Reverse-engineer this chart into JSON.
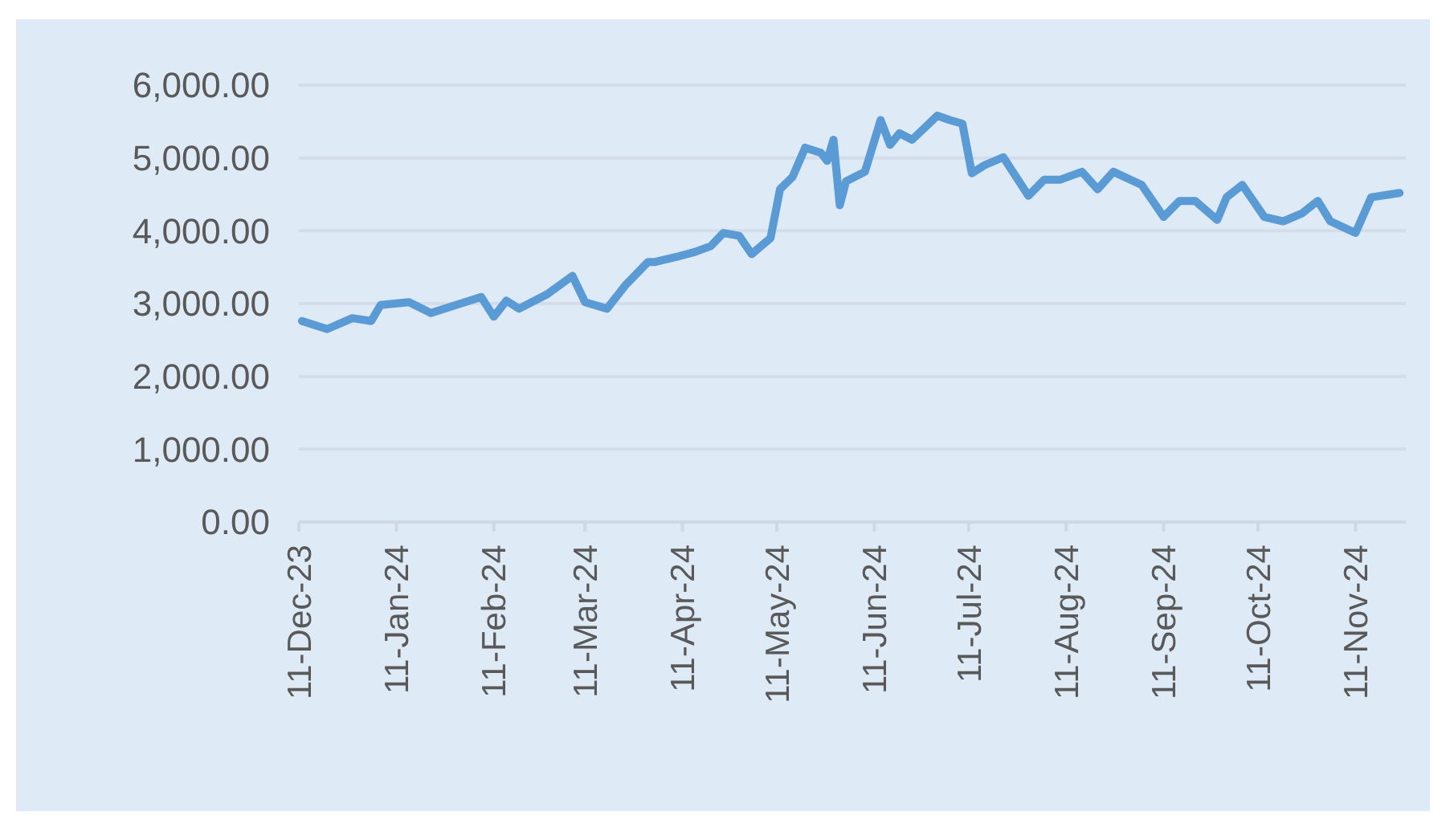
{
  "chart_data": {
    "type": "line",
    "grid": "y",
    "line_style": "solid",
    "marker": "none",
    "xlim": [
      "2023-12-11",
      "2024-11-27"
    ],
    "xticks": [
      {
        "value": "2023-12-11",
        "label": "11-Dec-23"
      },
      {
        "value": "2024-01-11",
        "label": "11-Jan-24"
      },
      {
        "value": "2024-02-11",
        "label": "11-Feb-24"
      },
      {
        "value": "2024-03-11",
        "label": "11-Mar-24"
      },
      {
        "value": "2024-04-11",
        "label": "11-Apr-24"
      },
      {
        "value": "2024-05-11",
        "label": "11-May-24"
      },
      {
        "value": "2024-06-11",
        "label": "11-Jun-24"
      },
      {
        "value": "2024-07-11",
        "label": "11-Jul-24"
      },
      {
        "value": "2024-08-11",
        "label": "11-Aug-24"
      },
      {
        "value": "2024-09-11",
        "label": "11-Sep-24"
      },
      {
        "value": "2024-10-11",
        "label": "11-Oct-24"
      },
      {
        "value": "2024-11-11",
        "label": "11-Nov-24"
      }
    ],
    "ylim": [
      0,
      6000
    ],
    "yticks": [
      {
        "value": 0,
        "label": "0.00"
      },
      {
        "value": 1000,
        "label": "1,000.00"
      },
      {
        "value": 2000,
        "label": "2,000.00"
      },
      {
        "value": 3000,
        "label": "3,000.00"
      },
      {
        "value": 4000,
        "label": "4,000.00"
      },
      {
        "value": 5000,
        "label": "5,000.00"
      },
      {
        "value": 6000,
        "label": "6,000.00"
      }
    ],
    "x": [
      "2023-12-12",
      "2023-12-20",
      "2023-12-28",
      "2024-01-03",
      "2024-01-06",
      "2024-01-15",
      "2024-01-22",
      "2024-01-30",
      "2024-02-07",
      "2024-02-11",
      "2024-02-15",
      "2024-02-19",
      "2024-02-28",
      "2024-03-07",
      "2024-03-11",
      "2024-03-18",
      "2024-03-24",
      "2024-03-31",
      "2024-04-02",
      "2024-04-09",
      "2024-04-15",
      "2024-04-20",
      "2024-04-24",
      "2024-04-29",
      "2024-05-03",
      "2024-05-09",
      "2024-05-12",
      "2024-05-16",
      "2024-05-20",
      "2024-05-25",
      "2024-05-27",
      "2024-05-29",
      "2024-05-31",
      "2024-06-02",
      "2024-06-08",
      "2024-06-13",
      "2024-06-16",
      "2024-06-19",
      "2024-06-23",
      "2024-07-01",
      "2024-07-05",
      "2024-07-09",
      "2024-07-12",
      "2024-07-16",
      "2024-07-22",
      "2024-07-27",
      "2024-07-30",
      "2024-08-04",
      "2024-08-09",
      "2024-08-16",
      "2024-08-21",
      "2024-08-26",
      "2024-09-04",
      "2024-09-11",
      "2024-09-16",
      "2024-09-21",
      "2024-09-28",
      "2024-10-01",
      "2024-10-06",
      "2024-10-13",
      "2024-10-19",
      "2024-10-25",
      "2024-10-30",
      "2024-11-03",
      "2024-11-11",
      "2024-11-16",
      "2024-11-25"
    ],
    "series": [
      {
        "color": "#5b9bd5",
        "values": [
          2760,
          2650,
          2800,
          2760,
          2980,
          3020,
          2870,
          2980,
          3090,
          2820,
          3040,
          2930,
          3130,
          3380,
          3020,
          2930,
          3260,
          3570,
          3570,
          3640,
          3710,
          3790,
          3970,
          3930,
          3680,
          3900,
          4570,
          4740,
          5140,
          5070,
          4960,
          5250,
          4350,
          4680,
          4810,
          5520,
          5180,
          5340,
          5250,
          5580,
          5520,
          5470,
          4790,
          4900,
          5010,
          4680,
          4480,
          4700,
          4700,
          4810,
          4570,
          4810,
          4630,
          4190,
          4410,
          4410,
          4150,
          4460,
          4630,
          4190,
          4130,
          4240,
          4410,
          4130,
          3970,
          4460,
          4520
        ]
      }
    ]
  }
}
